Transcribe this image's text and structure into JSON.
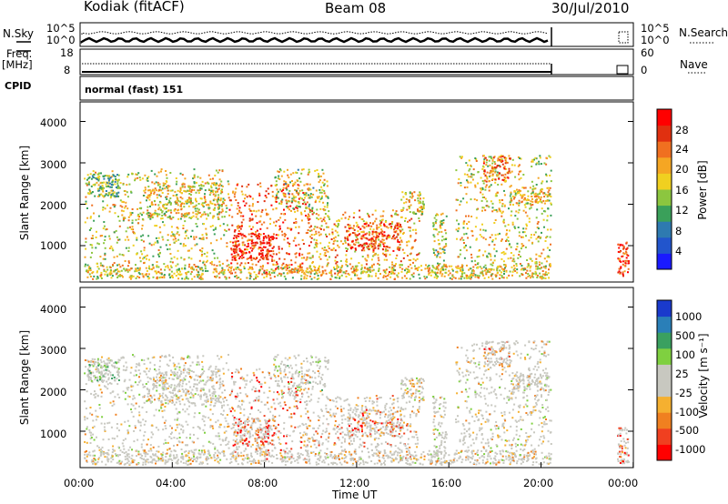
{
  "header": {
    "station": "Kodiak (fitACF)",
    "beam": "Beam 08",
    "date": "30/Jul/2010"
  },
  "noise_panel": {
    "left_label": "N.Sky",
    "right_label": "N.Search",
    "left_ticks": [
      "10^5",
      "10^0"
    ],
    "right_ticks": [
      "10^5",
      "10^0"
    ]
  },
  "freq_panel": {
    "left_label_line1": "Freq.",
    "left_label_line2": "[MHz]",
    "right_label": "Nave",
    "left_ticks": [
      "18",
      "8"
    ],
    "right_ticks": [
      "60",
      "0"
    ]
  },
  "cpid_panel": {
    "label": "CPID",
    "mode_text": "normal (fast) 151"
  },
  "time_axis": {
    "label": "Time UT",
    "ticks": [
      "00:00",
      "04:00",
      "08:00",
      "12:00",
      "16:00",
      "20:00",
      "00:00"
    ]
  },
  "chart_data": [
    {
      "type": "heatmap",
      "title": "",
      "ylabel": "Slant Range [km]",
      "yticks": [
        "1000",
        "2000",
        "3000",
        "4000"
      ],
      "ylim": [
        180,
        4600
      ],
      "xlabel": "",
      "colorbar": {
        "label": "Power [dB]",
        "ticks": [
          "4",
          "8",
          "12",
          "16",
          "20",
          "24",
          "28"
        ],
        "colors": [
          "#1a1aff",
          "#2255cc",
          "#2e7ab0",
          "#3aa05a",
          "#8cc63f",
          "#f0d020",
          "#f5a623",
          "#f07020",
          "#e03010",
          "#ff0000"
        ]
      }
    },
    {
      "type": "heatmap",
      "title": "",
      "ylabel": "Slant Range [km]",
      "yticks": [
        "1000",
        "2000",
        "3000",
        "4000"
      ],
      "ylim": [
        180,
        4600
      ],
      "xlabel": "Time UT",
      "colorbar": {
        "label": "Velocity [m s⁻¹]",
        "ticks": [
          "1000",
          "500",
          "100",
          "25",
          "-25",
          "-100",
          "-500",
          "-1000"
        ],
        "colors": [
          "#1a3acc",
          "#2a7fb8",
          "#3aa060",
          "#7fd040",
          "#c8c8c0",
          "#c8c8c0",
          "#f5b030",
          "#f08020",
          "#f04020",
          "#ff0000"
        ]
      }
    }
  ]
}
